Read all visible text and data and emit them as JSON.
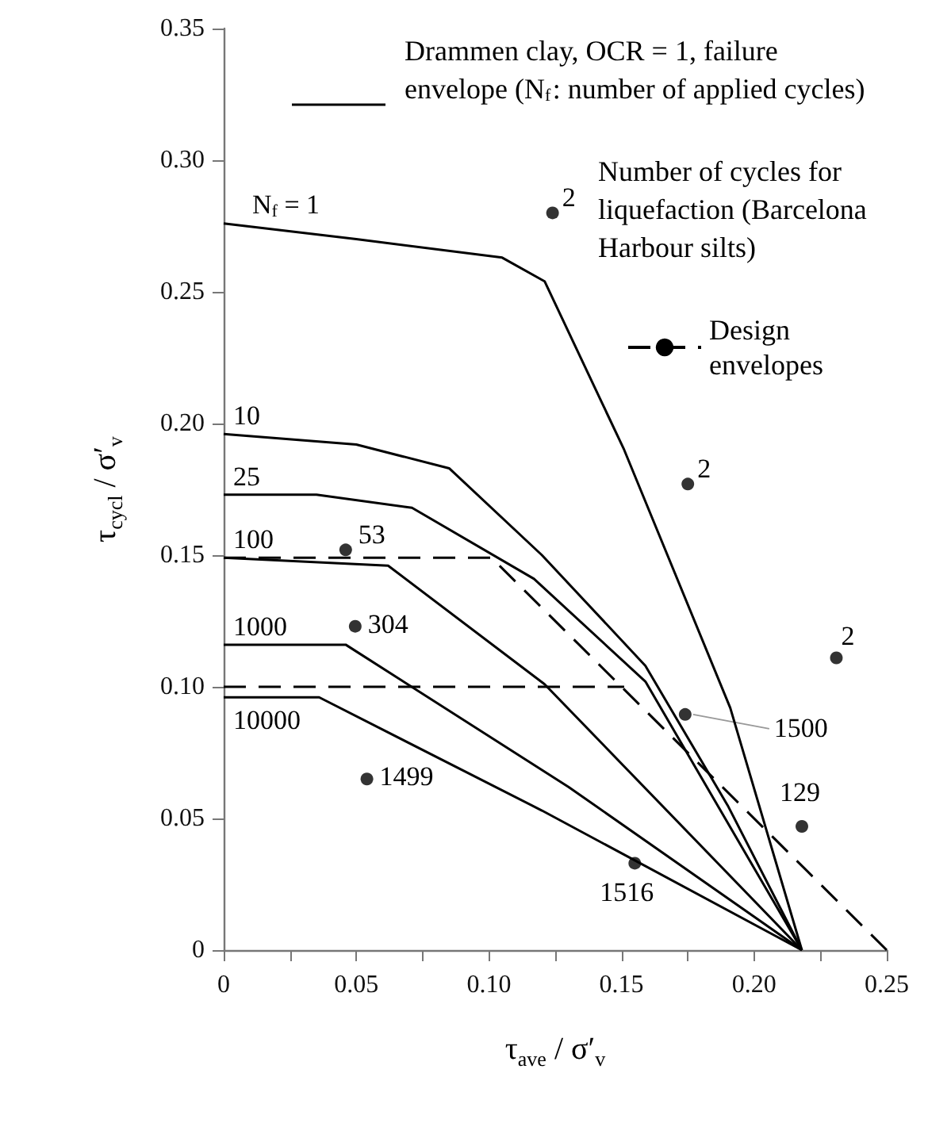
{
  "chart_data": {
    "type": "line",
    "xlabel": "τ$_{ave}$ / σ′$_{v}$",
    "ylabel": "τ$_{cycl}$ / σ′$_{v}$",
    "xlim": [
      0,
      0.25
    ],
    "xticks": [
      0,
      {
        "value": 0.025,
        "label": null
      },
      0.05,
      {
        "value": 0.075,
        "label": null
      },
      {
        "value": 0.1,
        "label": "0.10"
      },
      {
        "value": 0.125,
        "label": null
      },
      0.15,
      {
        "value": 0.175,
        "label": null
      },
      {
        "value": 0.2,
        "label": "0.20"
      },
      {
        "value": 0.225,
        "label": null
      },
      0.25
    ],
    "ylim": [
      0,
      0.35
    ],
    "yticks": [
      0,
      0.05,
      {
        "value": 0.1,
        "label": "0.10"
      },
      0.15,
      {
        "value": 0.2,
        "label": "0.20"
      },
      0.25,
      {
        "value": 0.3,
        "label": "0.30"
      },
      0.35
    ],
    "grid": false,
    "legend": "top right",
    "marker": "none",
    "annotations": [
      "Drammen clay, OCR = 1, failure envelope (N$_{f}$: number of applied cycles)",
      "Number of cycles for liquefaction (Barcelona Harbour silts)",
      {
        "text": "2",
        "x": 0.124,
        "y": 0.28
      },
      {
        "text": "53",
        "x": 0.046,
        "y": 0.152
      },
      {
        "text": "304",
        "x": 0.0496,
        "y": 0.123
      },
      {
        "text": "2",
        "x": 0.175,
        "y": 0.177
      },
      {
        "text": "2",
        "x": 0.231,
        "y": 0.111
      },
      {
        "text": "1500",
        "x": 0.174,
        "y": 0.0895
      },
      {
        "text": "1499",
        "x": 0.054,
        "y": 0.065
      },
      {
        "text": "129",
        "x": 0.218,
        "y": 0.047
      },
      {
        "text": "1516",
        "x": 0.155,
        "y": 0.033
      }
    ],
    "series": [
      {
        "name": "N$_{f}$ = 1",
        "color": "#000000",
        "line_style": "solid",
        "x": [
          0,
          0.05,
          0.105,
          0.121,
          0.151,
          0.191,
          0.218
        ],
        "values": [
          0.276,
          0.27,
          0.263,
          0.254,
          0.19,
          0.092,
          0
        ]
      },
      {
        "name": "10",
        "color": "#000000",
        "line_style": "solid",
        "x": [
          0,
          0.05,
          0.085,
          0.12,
          0.159,
          0.19,
          0.218
        ],
        "values": [
          0.196,
          0.192,
          0.183,
          0.15,
          0.108,
          0.055,
          0
        ]
      },
      {
        "name": "25",
        "color": "#000000",
        "line_style": "solid",
        "x": [
          0,
          0.035,
          0.071,
          0.117,
          0.159,
          0.218
        ],
        "values": [
          0.173,
          0.173,
          0.168,
          0.141,
          0.102,
          0
        ]
      },
      {
        "name": "100",
        "color": "#000000",
        "line_style": "solid",
        "x": [
          0,
          0.062,
          0.121,
          0.218
        ],
        "values": [
          0.149,
          0.146,
          0.101,
          0
        ]
      },
      {
        "name": "1000",
        "color": "#000000",
        "line_style": "solid",
        "x": [
          0,
          0.046,
          0.13,
          0.218
        ],
        "values": [
          0.116,
          0.116,
          0.062,
          0
        ]
      },
      {
        "name": "10000",
        "color": "#000000",
        "line_style": "solid",
        "x": [
          0,
          0.036,
          0.12,
          0.218
        ],
        "values": [
          0.096,
          0.096,
          0.053,
          0
        ]
      },
      {
        "name": "Design envelopes",
        "color": "#000000",
        "line_style": "dashed",
        "x": [
          0,
          0.101,
          0.25
        ],
        "values": [
          0.149,
          0.149,
          0
        ]
      },
      {
        "color": "#000000",
        "line_style": "dashed",
        "x": [
          0,
          0.151
        ],
        "values": [
          0.1,
          0.1
        ]
      },
      {
        "type": "scatter",
        "marker": "circle",
        "color": "#000000",
        "x": [
          0.124,
          0.046,
          0.0496,
          0.175,
          0.231,
          0.174,
          0.054,
          0.218,
          0.155
        ],
        "values": [
          0.28,
          0.152,
          0.123,
          0.177,
          0.111,
          0.0895,
          0.065,
          0.047,
          0.033
        ]
      }
    ]
  }
}
